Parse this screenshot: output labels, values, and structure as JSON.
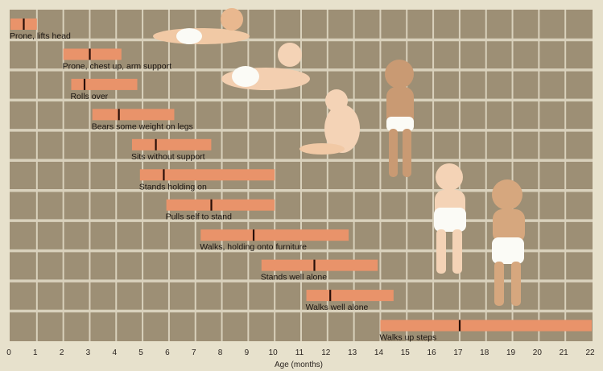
{
  "chart_data": {
    "type": "range-bar",
    "xlabel": "Age (months)",
    "ylabel": "",
    "title": "",
    "xlim": [
      0,
      22
    ],
    "xticks": [
      0,
      1,
      2,
      3,
      4,
      5,
      6,
      7,
      8,
      9,
      10,
      11,
      12,
      13,
      14,
      15,
      16,
      17,
      18,
      19,
      20,
      21,
      22
    ],
    "grid": true,
    "series": [
      {
        "label": "Prone, lifts head",
        "start": 0,
        "end": 1,
        "median": 0.5
      },
      {
        "label": "Prone, chest up, arm support",
        "start": 2,
        "end": 4.2,
        "median": 3
      },
      {
        "label": "Rolls over",
        "start": 2.3,
        "end": 4.8,
        "median": 2.8
      },
      {
        "label": "Bears some weight on legs",
        "start": 3.1,
        "end": 6.2,
        "median": 4.1
      },
      {
        "label": "Sits without support",
        "start": 4.6,
        "end": 7.6,
        "median": 5.5
      },
      {
        "label": "Stands holding on",
        "start": 4.9,
        "end": 10,
        "median": 5.8
      },
      {
        "label": "Pulls self to stand",
        "start": 5.9,
        "end": 10,
        "median": 7.6
      },
      {
        "label": "Walks, holding onto furniture",
        "start": 7.2,
        "end": 12.8,
        "median": 9.2
      },
      {
        "label": "Stands well alone",
        "start": 9.5,
        "end": 13.9,
        "median": 11.5
      },
      {
        "label": "Walks well alone",
        "start": 11.2,
        "end": 14.5,
        "median": 12.1
      },
      {
        "label": "Walks up steps",
        "start": 14,
        "end": 22,
        "median": 17
      }
    ],
    "colors": {
      "bar": "#e9936a",
      "median": "#2a0f08",
      "cell": "#9d8f75",
      "gridline": "#d9d1bc",
      "background": "#e7e1cc"
    }
  }
}
